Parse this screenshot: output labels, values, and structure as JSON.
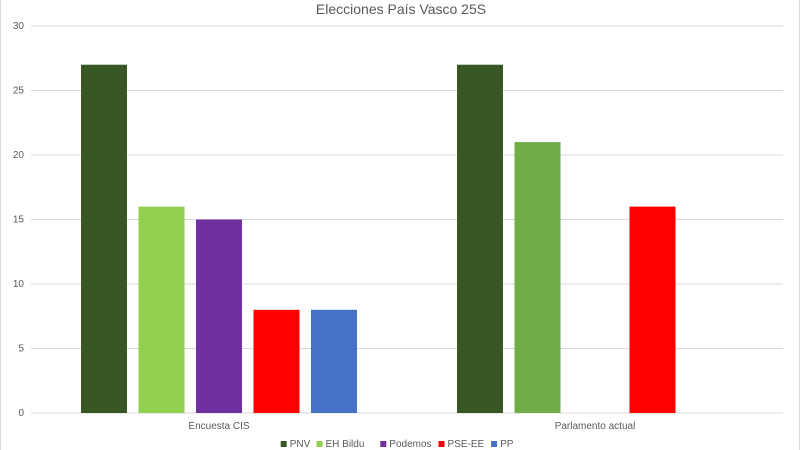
{
  "chart_data": {
    "type": "bar",
    "title": "Elecciones País Vasco 25S",
    "categories": [
      "Encuesta CIS",
      "Parlamento actual"
    ],
    "series": [
      {
        "name": "PNV",
        "color": "#375623",
        "values": [
          27,
          27
        ]
      },
      {
        "name": "EH Bildu",
        "color": "#92d050",
        "values": [
          16,
          21
        ]
      },
      {
        "name": "Podemos",
        "color": "#7030a0",
        "values": [
          15,
          null
        ]
      },
      {
        "name": "PSE-EE",
        "color": "#ff0000",
        "values": [
          8,
          16
        ]
      },
      {
        "name": "PP",
        "color": "#4472c4",
        "values": [
          8,
          null
        ]
      }
    ],
    "ylim": [
      0,
      30
    ],
    "yticks": [
      0,
      5,
      10,
      15,
      20,
      25,
      30
    ],
    "grid": true,
    "legend": "bottom"
  },
  "series_colors_override": {
    "Parlamento actual": {
      "EH Bildu": "#70ad47"
    }
  }
}
